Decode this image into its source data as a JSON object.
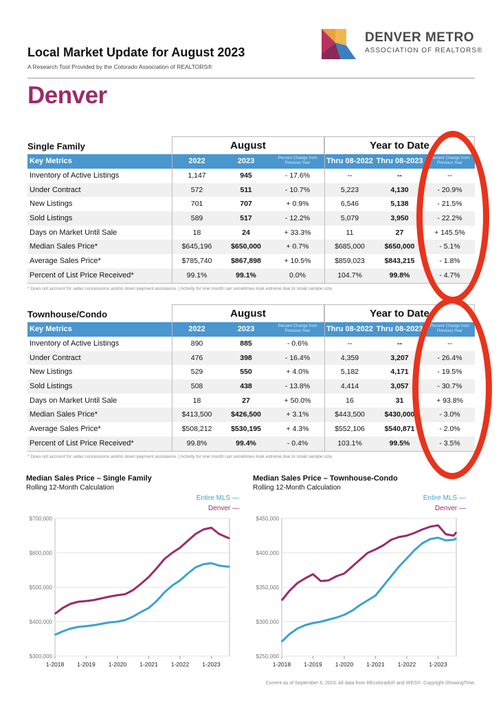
{
  "header": {
    "title": "Local Market Update for August 2023",
    "subtitle": "A Research Tool Provided by the Colorado Association of REALTORS®",
    "city": "Denver",
    "logo_line1": "DENVER METRO",
    "logo_line2": "ASSOCIATION OF REALTORS®"
  },
  "sections": [
    {
      "name": "Single Family",
      "group_august": "August",
      "group_ytd": "Year to Date",
      "key_metrics": "Key Metrics",
      "col_2022": "2022",
      "col_2023": "2023",
      "col_pct": "Percent Change from Previous Year",
      "col_thru_2022": "Thru 08-2022",
      "col_thru_2023": "Thru 08-2023",
      "col_pct_ytd": "Percent Change from Previous Year",
      "rows": [
        {
          "metric": "Inventory of Active Listings",
          "v2022": "1,147",
          "v2023": "945",
          "pct": "- 17.6%",
          "ytd2022": "--",
          "ytd2023": "--",
          "ytdpct": "--"
        },
        {
          "metric": "Under Contract",
          "v2022": "572",
          "v2023": "511",
          "pct": "- 10.7%",
          "ytd2022": "5,223",
          "ytd2023": "4,130",
          "ytdpct": "- 20.9%"
        },
        {
          "metric": "New Listings",
          "v2022": "701",
          "v2023": "707",
          "pct": "+ 0.9%",
          "ytd2022": "6,546",
          "ytd2023": "5,138",
          "ytdpct": "- 21.5%"
        },
        {
          "metric": "Sold Listings",
          "v2022": "589",
          "v2023": "517",
          "pct": "- 12.2%",
          "ytd2022": "5,079",
          "ytd2023": "3,950",
          "ytdpct": "- 22.2%"
        },
        {
          "metric": "Days on Market Until Sale",
          "v2022": "18",
          "v2023": "24",
          "pct": "+ 33.3%",
          "ytd2022": "11",
          "ytd2023": "27",
          "ytdpct": "+ 145.5%"
        },
        {
          "metric": "Median Sales Price*",
          "v2022": "$645,196",
          "v2023": "$650,000",
          "pct": "+ 0.7%",
          "ytd2022": "$685,000",
          "ytd2023": "$650,000",
          "ytdpct": "- 5.1%"
        },
        {
          "metric": "Average Sales Price*",
          "v2022": "$785,740",
          "v2023": "$867,898",
          "pct": "+ 10.5%",
          "ytd2022": "$859,023",
          "ytd2023": "$843,215",
          "ytdpct": "- 1.8%"
        },
        {
          "metric": "Percent of List Price Received*",
          "v2022": "99.1%",
          "v2023": "99.1%",
          "pct": "0.0%",
          "ytd2022": "104.7%",
          "ytd2023": "99.8%",
          "ytdpct": "- 4.7%"
        }
      ],
      "footnote": "* Does not account for seller concessions and/or down payment assistance.  |  Activity for one month can sometimes look extreme due to small sample size."
    },
    {
      "name": "Townhouse/Condo",
      "group_august": "August",
      "group_ytd": "Year to Date",
      "key_metrics": "Key Metrics",
      "col_2022": "2022",
      "col_2023": "2023",
      "col_pct": "Percent Change from Previous Year",
      "col_thru_2022": "Thru 08-2022",
      "col_thru_2023": "Thru 08-2023",
      "col_pct_ytd": "Percent Change from Previous Year",
      "rows": [
        {
          "metric": "Inventory of Active Listings",
          "v2022": "890",
          "v2023": "885",
          "pct": "- 0.6%",
          "ytd2022": "--",
          "ytd2023": "--",
          "ytdpct": "--"
        },
        {
          "metric": "Under Contract",
          "v2022": "476",
          "v2023": "398",
          "pct": "- 16.4%",
          "ytd2022": "4,359",
          "ytd2023": "3,207",
          "ytdpct": "- 26.4%"
        },
        {
          "metric": "New Listings",
          "v2022": "529",
          "v2023": "550",
          "pct": "+ 4.0%",
          "ytd2022": "5,182",
          "ytd2023": "4,171",
          "ytdpct": "- 19.5%"
        },
        {
          "metric": "Sold Listings",
          "v2022": "508",
          "v2023": "438",
          "pct": "- 13.8%",
          "ytd2022": "4,414",
          "ytd2023": "3,057",
          "ytdpct": "- 30.7%"
        },
        {
          "metric": "Days on Market Until Sale",
          "v2022": "18",
          "v2023": "27",
          "pct": "+ 50.0%",
          "ytd2022": "16",
          "ytd2023": "31",
          "ytdpct": "+ 93.8%"
        },
        {
          "metric": "Median Sales Price*",
          "v2022": "$413,500",
          "v2023": "$426,500",
          "pct": "+ 3.1%",
          "ytd2022": "$443,500",
          "ytd2023": "$430,000",
          "ytdpct": "- 3.0%"
        },
        {
          "metric": "Average Sales Price*",
          "v2022": "$508,212",
          "v2023": "$530,195",
          "pct": "+ 4.3%",
          "ytd2022": "$552,106",
          "ytd2023": "$540,871",
          "ytdpct": "- 2.0%"
        },
        {
          "metric": "Percent of List Price Received*",
          "v2022": "99.8%",
          "v2023": "99.4%",
          "pct": "- 0.4%",
          "ytd2022": "103.1%",
          "ytd2023": "99.5%",
          "ytdpct": "- 3.5%"
        }
      ],
      "footnote": "* Does not account for seller concessions and/or down payment assistance.  |  Activity for one month can sometimes look extreme due to small sample size."
    }
  ],
  "charts": [
    {
      "title": "Median Sales Price – Single Family",
      "subtitle": "Rolling 12-Month Calculation",
      "legend_mls": "Entire MLS  —",
      "legend_denver": "Denver  —",
      "y_ticks": [
        "$700,000",
        "$600,000",
        "$500,000",
        "$400,000",
        "$300,000"
      ],
      "x_ticks": [
        "1-2018",
        "1-2019",
        "1-2020",
        "1-2021",
        "1-2022",
        "1-2023"
      ]
    },
    {
      "title": "Median Sales Price – Townhouse-Condo",
      "subtitle": "Rolling 12-Month Calculation",
      "legend_mls": "Entire MLS  —",
      "legend_denver": "Denver  —",
      "y_ticks": [
        "$450,000",
        "$400,000",
        "$350,000",
        "$300,000",
        "$250,000"
      ],
      "x_ticks": [
        "1-2018",
        "1-2019",
        "1-2020",
        "1-2021",
        "1-2022",
        "1-2023"
      ]
    }
  ],
  "chart_data": [
    {
      "type": "line",
      "title": "Median Sales Price – Single Family",
      "xlabel": "",
      "ylabel": "",
      "x": [
        "1-2018",
        "4-2018",
        "7-2018",
        "10-2018",
        "1-2019",
        "4-2019",
        "7-2019",
        "10-2019",
        "1-2020",
        "4-2020",
        "7-2020",
        "10-2020",
        "1-2021",
        "4-2021",
        "7-2021",
        "10-2021",
        "1-2022",
        "4-2022",
        "7-2022",
        "10-2022",
        "1-2023",
        "4-2023",
        "7-2023",
        "8-2023"
      ],
      "ylim": [
        300000,
        700000
      ],
      "series": [
        {
          "name": "Entire MLS",
          "color": "#3ba3cf",
          "values": [
            362000,
            372000,
            380000,
            385000,
            387000,
            390000,
            394000,
            398000,
            400000,
            405000,
            415000,
            428000,
            440000,
            460000,
            485000,
            505000,
            520000,
            540000,
            558000,
            567000,
            570000,
            563000,
            560000,
            560000
          ]
        },
        {
          "name": "Denver",
          "color": "#9b2b6b",
          "values": [
            423000,
            440000,
            452000,
            458000,
            460000,
            463000,
            468000,
            473000,
            477000,
            480000,
            492000,
            510000,
            530000,
            555000,
            582000,
            600000,
            615000,
            635000,
            655000,
            668000,
            673000,
            655000,
            645000,
            642000
          ]
        }
      ],
      "colors": {
        "mls": "#3ba3cf",
        "denver": "#9b2b6b"
      }
    },
    {
      "type": "line",
      "title": "Median Sales Price – Townhouse-Condo",
      "xlabel": "",
      "ylabel": "",
      "x": [
        "1-2018",
        "4-2018",
        "7-2018",
        "10-2018",
        "1-2019",
        "4-2019",
        "7-2019",
        "10-2019",
        "1-2020",
        "4-2020",
        "7-2020",
        "10-2020",
        "1-2021",
        "4-2021",
        "7-2021",
        "10-2021",
        "1-2022",
        "4-2022",
        "7-2022",
        "10-2022",
        "1-2023",
        "4-2023",
        "7-2023",
        "8-2023"
      ],
      "ylim": [
        250000,
        450000
      ],
      "series": [
        {
          "name": "Entire MLS",
          "color": "#3ba3cf",
          "values": [
            271000,
            282000,
            290000,
            295000,
            298000,
            300000,
            303000,
            306000,
            310000,
            316000,
            324000,
            331000,
            338000,
            352000,
            366000,
            380000,
            392000,
            404000,
            414000,
            420000,
            422000,
            418000,
            419000,
            421000
          ]
        },
        {
          "name": "Denver",
          "color": "#9b2b6b",
          "values": [
            331000,
            345000,
            356000,
            363000,
            369000,
            359000,
            360000,
            366000,
            370000,
            380000,
            390000,
            400000,
            405000,
            411000,
            419000,
            423000,
            425000,
            429000,
            434000,
            438000,
            440000,
            427000,
            425000,
            430000
          ]
        }
      ],
      "colors": {
        "mls": "#3ba3cf",
        "denver": "#9b2b6b"
      }
    }
  ],
  "source": "Current as of September 6, 2023. All data from REcolorado® and IRES®. Copyright ShowingTime.",
  "colors": {
    "accent": "#4a96cf",
    "brand": "#9b2b6b",
    "annotation": "#e8341c"
  }
}
